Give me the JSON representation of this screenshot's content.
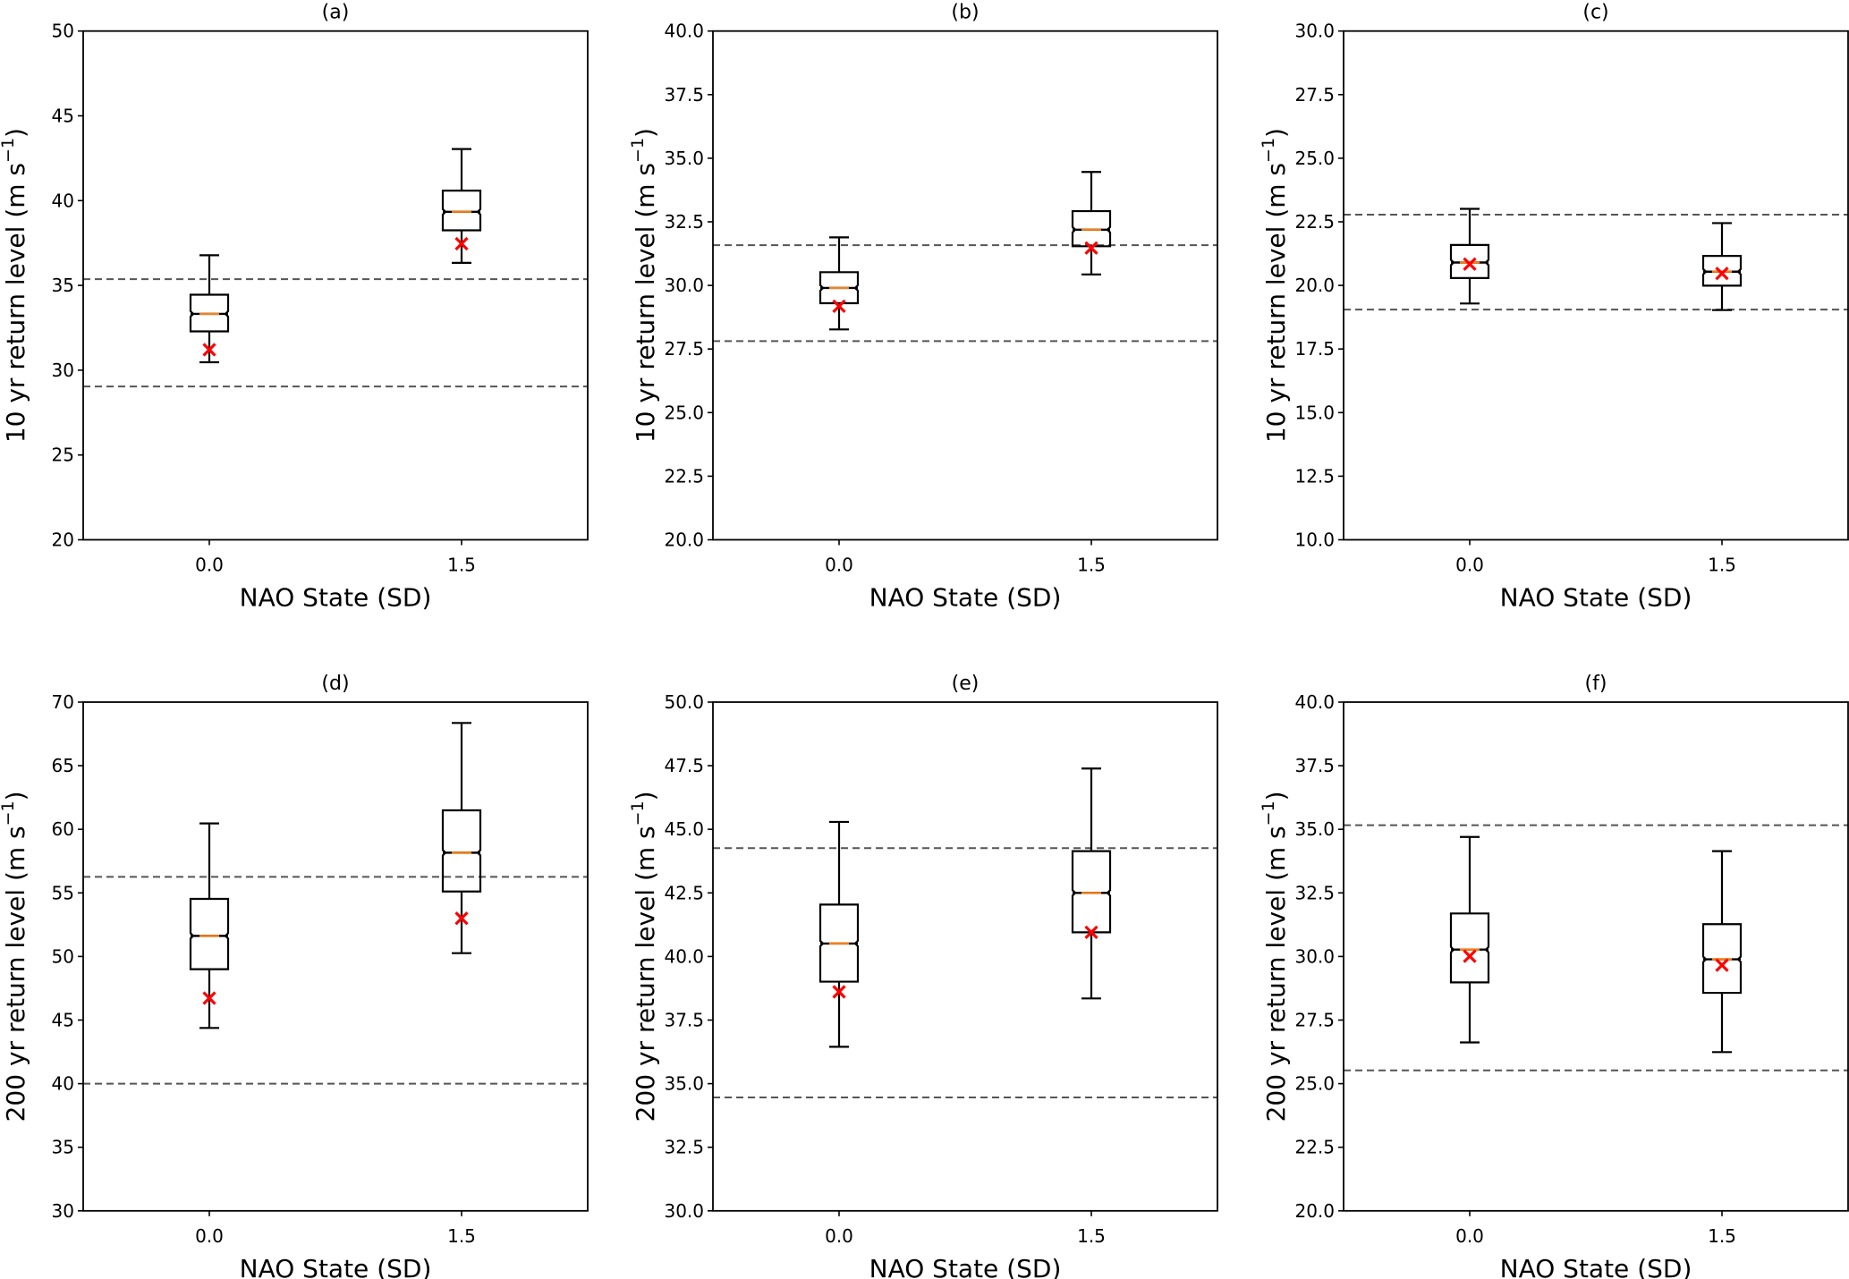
{
  "chart_data": [
    {
      "type": "box",
      "title": "(a)",
      "xlabel": "NAO State (SD)",
      "ylabel": "10 yr return level (m s",
      "ylabel_sup": "−1",
      "ylabel_close": ")",
      "ylim": [
        20,
        50
      ],
      "xlim": [
        -0.75,
        2.25
      ],
      "yticks": [
        20,
        25,
        30,
        35,
        40,
        45,
        50
      ],
      "ytick_labels": [
        "20",
        "25",
        "30",
        "35",
        "40",
        "45",
        "50"
      ],
      "categories": [
        "0.0",
        "1.5"
      ],
      "x": [
        0.0,
        1.5
      ],
      "boxes": [
        {
          "x": 0.0,
          "whisker_low": 30.47,
          "q1": 32.29,
          "median": 33.32,
          "q3": 34.45,
          "whisker_high": 36.78,
          "marker": 31.21
        },
        {
          "x": 1.5,
          "whisker_low": 36.33,
          "q1": 38.25,
          "median": 39.34,
          "q3": 40.59,
          "whisker_high": 43.04,
          "marker": 37.46
        }
      ],
      "hlines": [
        35.37,
        29.04
      ]
    },
    {
      "type": "box",
      "title": "(b)",
      "xlabel": "NAO State (SD)",
      "ylabel": "10 yr return level (m s",
      "ylabel_sup": "−1",
      "ylabel_close": ")",
      "ylim": [
        20,
        40
      ],
      "xlim": [
        -0.75,
        2.25
      ],
      "yticks": [
        20,
        22.5,
        25,
        27.5,
        30,
        32.5,
        35,
        37.5,
        40
      ],
      "ytick_labels": [
        "20.0",
        "22.5",
        "25.0",
        "27.5",
        "30.0",
        "32.5",
        "35.0",
        "37.5",
        "40.0"
      ],
      "categories": [
        "0.0",
        "1.5"
      ],
      "x": [
        0.0,
        1.5
      ],
      "boxes": [
        {
          "x": 0.0,
          "whisker_low": 28.27,
          "q1": 29.3,
          "median": 29.9,
          "q3": 30.52,
          "whisker_high": 31.89,
          "marker": 29.18
        },
        {
          "x": 1.5,
          "whisker_low": 30.43,
          "q1": 31.54,
          "median": 32.19,
          "q3": 32.92,
          "whisker_high": 34.46,
          "marker": 31.47
        }
      ],
      "hlines": [
        31.58,
        27.81
      ]
    },
    {
      "type": "box",
      "title": "(c)",
      "xlabel": "NAO State (SD)",
      "ylabel": "10 yr return level (m s",
      "ylabel_sup": "−1",
      "ylabel_close": ")",
      "ylim": [
        10,
        30
      ],
      "xlim": [
        -0.75,
        2.25
      ],
      "yticks": [
        10,
        12.5,
        15,
        17.5,
        20,
        22.5,
        25,
        27.5,
        30
      ],
      "ytick_labels": [
        "10.0",
        "12.5",
        "15.0",
        "17.5",
        "20.0",
        "22.5",
        "25.0",
        "27.5",
        "30.0"
      ],
      "categories": [
        "0.0",
        "1.5"
      ],
      "x": [
        0.0,
        1.5
      ],
      "boxes": [
        {
          "x": 0.0,
          "whisker_low": 19.29,
          "q1": 20.29,
          "median": 20.9,
          "q3": 21.59,
          "whisker_high": 23.01,
          "marker": 20.84
        },
        {
          "x": 1.5,
          "whisker_low": 19.03,
          "q1": 19.99,
          "median": 20.54,
          "q3": 21.16,
          "whisker_high": 22.45,
          "marker": 20.47
        }
      ],
      "hlines": [
        22.78,
        19.05
      ]
    },
    {
      "type": "box",
      "title": "(d)",
      "xlabel": "NAO State (SD)",
      "ylabel": "200 yr return level (m s",
      "ylabel_sup": "−1",
      "ylabel_close": ")",
      "ylim": [
        30,
        70
      ],
      "xlim": [
        -0.75,
        2.25
      ],
      "yticks": [
        30,
        35,
        40,
        45,
        50,
        55,
        60,
        65,
        70
      ],
      "ytick_labels": [
        "30",
        "35",
        "40",
        "45",
        "50",
        "55",
        "60",
        "65",
        "70"
      ],
      "categories": [
        "0.0",
        "1.5"
      ],
      "x": [
        0.0,
        1.5
      ],
      "boxes": [
        {
          "x": 0.0,
          "whisker_low": 44.38,
          "q1": 49.0,
          "median": 51.62,
          "q3": 54.53,
          "whisker_high": 60.46,
          "marker": 46.72
        },
        {
          "x": 1.5,
          "whisker_low": 50.26,
          "q1": 55.11,
          "median": 58.16,
          "q3": 61.49,
          "whisker_high": 68.36,
          "marker": 53.0
        }
      ],
      "hlines": [
        56.26,
        40.0
      ]
    },
    {
      "type": "box",
      "title": "(e)",
      "xlabel": "NAO State (SD)",
      "ylabel": "200 yr return level (m s",
      "ylabel_sup": "−1",
      "ylabel_close": ")",
      "ylim": [
        30,
        50
      ],
      "xlim": [
        -0.75,
        2.25
      ],
      "yticks": [
        30,
        32.5,
        35,
        37.5,
        40,
        42.5,
        45,
        47.5,
        50
      ],
      "ytick_labels": [
        "30.0",
        "32.5",
        "35.0",
        "37.5",
        "40.0",
        "42.5",
        "45.0",
        "47.5",
        "50.0"
      ],
      "categories": [
        "0.0",
        "1.5"
      ],
      "x": [
        0.0,
        1.5
      ],
      "boxes": [
        {
          "x": 0.0,
          "whisker_low": 36.45,
          "q1": 39.01,
          "median": 40.51,
          "q3": 42.04,
          "whisker_high": 45.29,
          "marker": 38.61
        },
        {
          "x": 1.5,
          "whisker_low": 38.35,
          "q1": 40.95,
          "median": 42.5,
          "q3": 44.14,
          "whisker_high": 47.39,
          "marker": 40.95
        }
      ],
      "hlines": [
        44.26,
        34.46
      ]
    },
    {
      "type": "box",
      "title": "(f)",
      "xlabel": "NAO State (SD)",
      "ylabel": "200 yr return level (m s",
      "ylabel_sup": "−1",
      "ylabel_close": ")",
      "ylim": [
        20,
        40
      ],
      "xlim": [
        -0.75,
        2.25
      ],
      "yticks": [
        20,
        22.5,
        25,
        27.5,
        30,
        32.5,
        35,
        37.5,
        40
      ],
      "ytick_labels": [
        "20.0",
        "22.5",
        "25.0",
        "27.5",
        "30.0",
        "32.5",
        "35.0",
        "37.5",
        "40.0"
      ],
      "categories": [
        "0.0",
        "1.5"
      ],
      "x": [
        0.0,
        1.5
      ],
      "boxes": [
        {
          "x": 0.0,
          "whisker_low": 26.62,
          "q1": 28.98,
          "median": 30.27,
          "q3": 31.69,
          "whisker_high": 34.7,
          "marker": 30.01
        },
        {
          "x": 1.5,
          "whisker_low": 26.24,
          "q1": 28.57,
          "median": 29.89,
          "q3": 31.27,
          "whisker_high": 34.14,
          "marker": 29.66
        }
      ],
      "hlines": [
        35.16,
        25.52
      ]
    }
  ],
  "colors": {
    "box_edge": "#000000",
    "median": "#ff7f0e",
    "marker": "#ff0000",
    "reference_line": "#555555"
  }
}
